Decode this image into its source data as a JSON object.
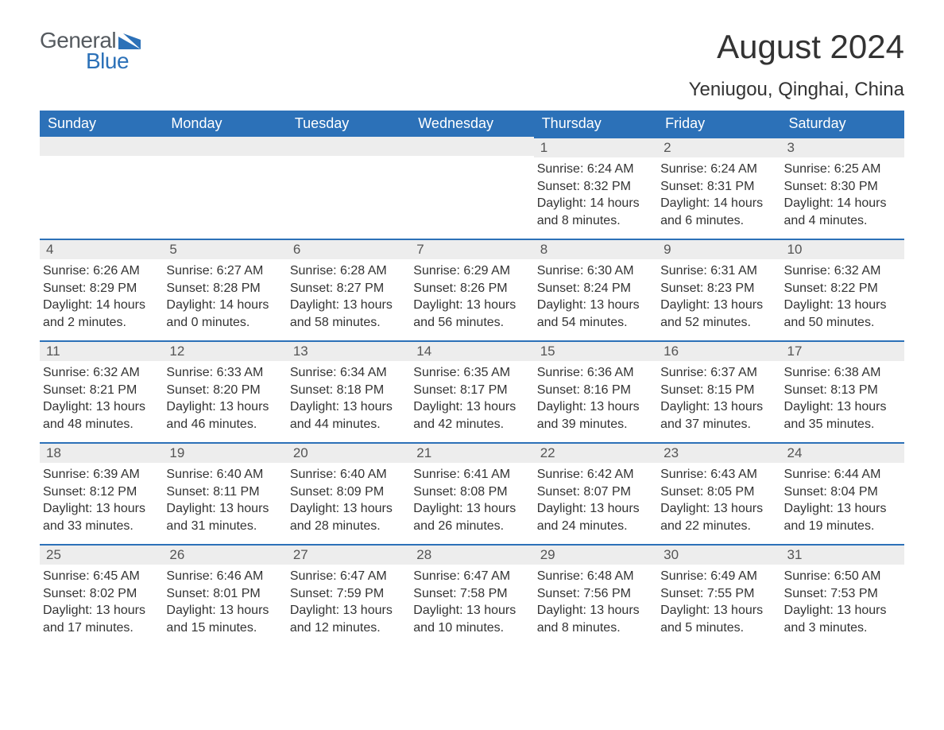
{
  "logo": {
    "text1": "General",
    "text2": "Blue",
    "shape_color": "#2c71b8"
  },
  "title": "August 2024",
  "location": "Yeniugou, Qinghai, China",
  "header_bg": "#2c71b8",
  "header_text_color": "#ffffff",
  "daynum_bg": "#ededed",
  "daynum_border_color": "#2c71b8",
  "text_color": "#333333",
  "weekdays": [
    "Sunday",
    "Monday",
    "Tuesday",
    "Wednesday",
    "Thursday",
    "Friday",
    "Saturday"
  ],
  "labels": {
    "sunrise": "Sunrise:",
    "sunset": "Sunset:",
    "daylight": "Daylight:"
  },
  "weeks": [
    [
      null,
      null,
      null,
      null,
      {
        "day": 1,
        "sunrise": "6:24 AM",
        "sunset": "8:32 PM",
        "daylight": "14 hours and 8 minutes."
      },
      {
        "day": 2,
        "sunrise": "6:24 AM",
        "sunset": "8:31 PM",
        "daylight": "14 hours and 6 minutes."
      },
      {
        "day": 3,
        "sunrise": "6:25 AM",
        "sunset": "8:30 PM",
        "daylight": "14 hours and 4 minutes."
      }
    ],
    [
      {
        "day": 4,
        "sunrise": "6:26 AM",
        "sunset": "8:29 PM",
        "daylight": "14 hours and 2 minutes."
      },
      {
        "day": 5,
        "sunrise": "6:27 AM",
        "sunset": "8:28 PM",
        "daylight": "14 hours and 0 minutes."
      },
      {
        "day": 6,
        "sunrise": "6:28 AM",
        "sunset": "8:27 PM",
        "daylight": "13 hours and 58 minutes."
      },
      {
        "day": 7,
        "sunrise": "6:29 AM",
        "sunset": "8:26 PM",
        "daylight": "13 hours and 56 minutes."
      },
      {
        "day": 8,
        "sunrise": "6:30 AM",
        "sunset": "8:24 PM",
        "daylight": "13 hours and 54 minutes."
      },
      {
        "day": 9,
        "sunrise": "6:31 AM",
        "sunset": "8:23 PM",
        "daylight": "13 hours and 52 minutes."
      },
      {
        "day": 10,
        "sunrise": "6:32 AM",
        "sunset": "8:22 PM",
        "daylight": "13 hours and 50 minutes."
      }
    ],
    [
      {
        "day": 11,
        "sunrise": "6:32 AM",
        "sunset": "8:21 PM",
        "daylight": "13 hours and 48 minutes."
      },
      {
        "day": 12,
        "sunrise": "6:33 AM",
        "sunset": "8:20 PM",
        "daylight": "13 hours and 46 minutes."
      },
      {
        "day": 13,
        "sunrise": "6:34 AM",
        "sunset": "8:18 PM",
        "daylight": "13 hours and 44 minutes."
      },
      {
        "day": 14,
        "sunrise": "6:35 AM",
        "sunset": "8:17 PM",
        "daylight": "13 hours and 42 minutes."
      },
      {
        "day": 15,
        "sunrise": "6:36 AM",
        "sunset": "8:16 PM",
        "daylight": "13 hours and 39 minutes."
      },
      {
        "day": 16,
        "sunrise": "6:37 AM",
        "sunset": "8:15 PM",
        "daylight": "13 hours and 37 minutes."
      },
      {
        "day": 17,
        "sunrise": "6:38 AM",
        "sunset": "8:13 PM",
        "daylight": "13 hours and 35 minutes."
      }
    ],
    [
      {
        "day": 18,
        "sunrise": "6:39 AM",
        "sunset": "8:12 PM",
        "daylight": "13 hours and 33 minutes."
      },
      {
        "day": 19,
        "sunrise": "6:40 AM",
        "sunset": "8:11 PM",
        "daylight": "13 hours and 31 minutes."
      },
      {
        "day": 20,
        "sunrise": "6:40 AM",
        "sunset": "8:09 PM",
        "daylight": "13 hours and 28 minutes."
      },
      {
        "day": 21,
        "sunrise": "6:41 AM",
        "sunset": "8:08 PM",
        "daylight": "13 hours and 26 minutes."
      },
      {
        "day": 22,
        "sunrise": "6:42 AM",
        "sunset": "8:07 PM",
        "daylight": "13 hours and 24 minutes."
      },
      {
        "day": 23,
        "sunrise": "6:43 AM",
        "sunset": "8:05 PM",
        "daylight": "13 hours and 22 minutes."
      },
      {
        "day": 24,
        "sunrise": "6:44 AM",
        "sunset": "8:04 PM",
        "daylight": "13 hours and 19 minutes."
      }
    ],
    [
      {
        "day": 25,
        "sunrise": "6:45 AM",
        "sunset": "8:02 PM",
        "daylight": "13 hours and 17 minutes."
      },
      {
        "day": 26,
        "sunrise": "6:46 AM",
        "sunset": "8:01 PM",
        "daylight": "13 hours and 15 minutes."
      },
      {
        "day": 27,
        "sunrise": "6:47 AM",
        "sunset": "7:59 PM",
        "daylight": "13 hours and 12 minutes."
      },
      {
        "day": 28,
        "sunrise": "6:47 AM",
        "sunset": "7:58 PM",
        "daylight": "13 hours and 10 minutes."
      },
      {
        "day": 29,
        "sunrise": "6:48 AM",
        "sunset": "7:56 PM",
        "daylight": "13 hours and 8 minutes."
      },
      {
        "day": 30,
        "sunrise": "6:49 AM",
        "sunset": "7:55 PM",
        "daylight": "13 hours and 5 minutes."
      },
      {
        "day": 31,
        "sunrise": "6:50 AM",
        "sunset": "7:53 PM",
        "daylight": "13 hours and 3 minutes."
      }
    ]
  ]
}
